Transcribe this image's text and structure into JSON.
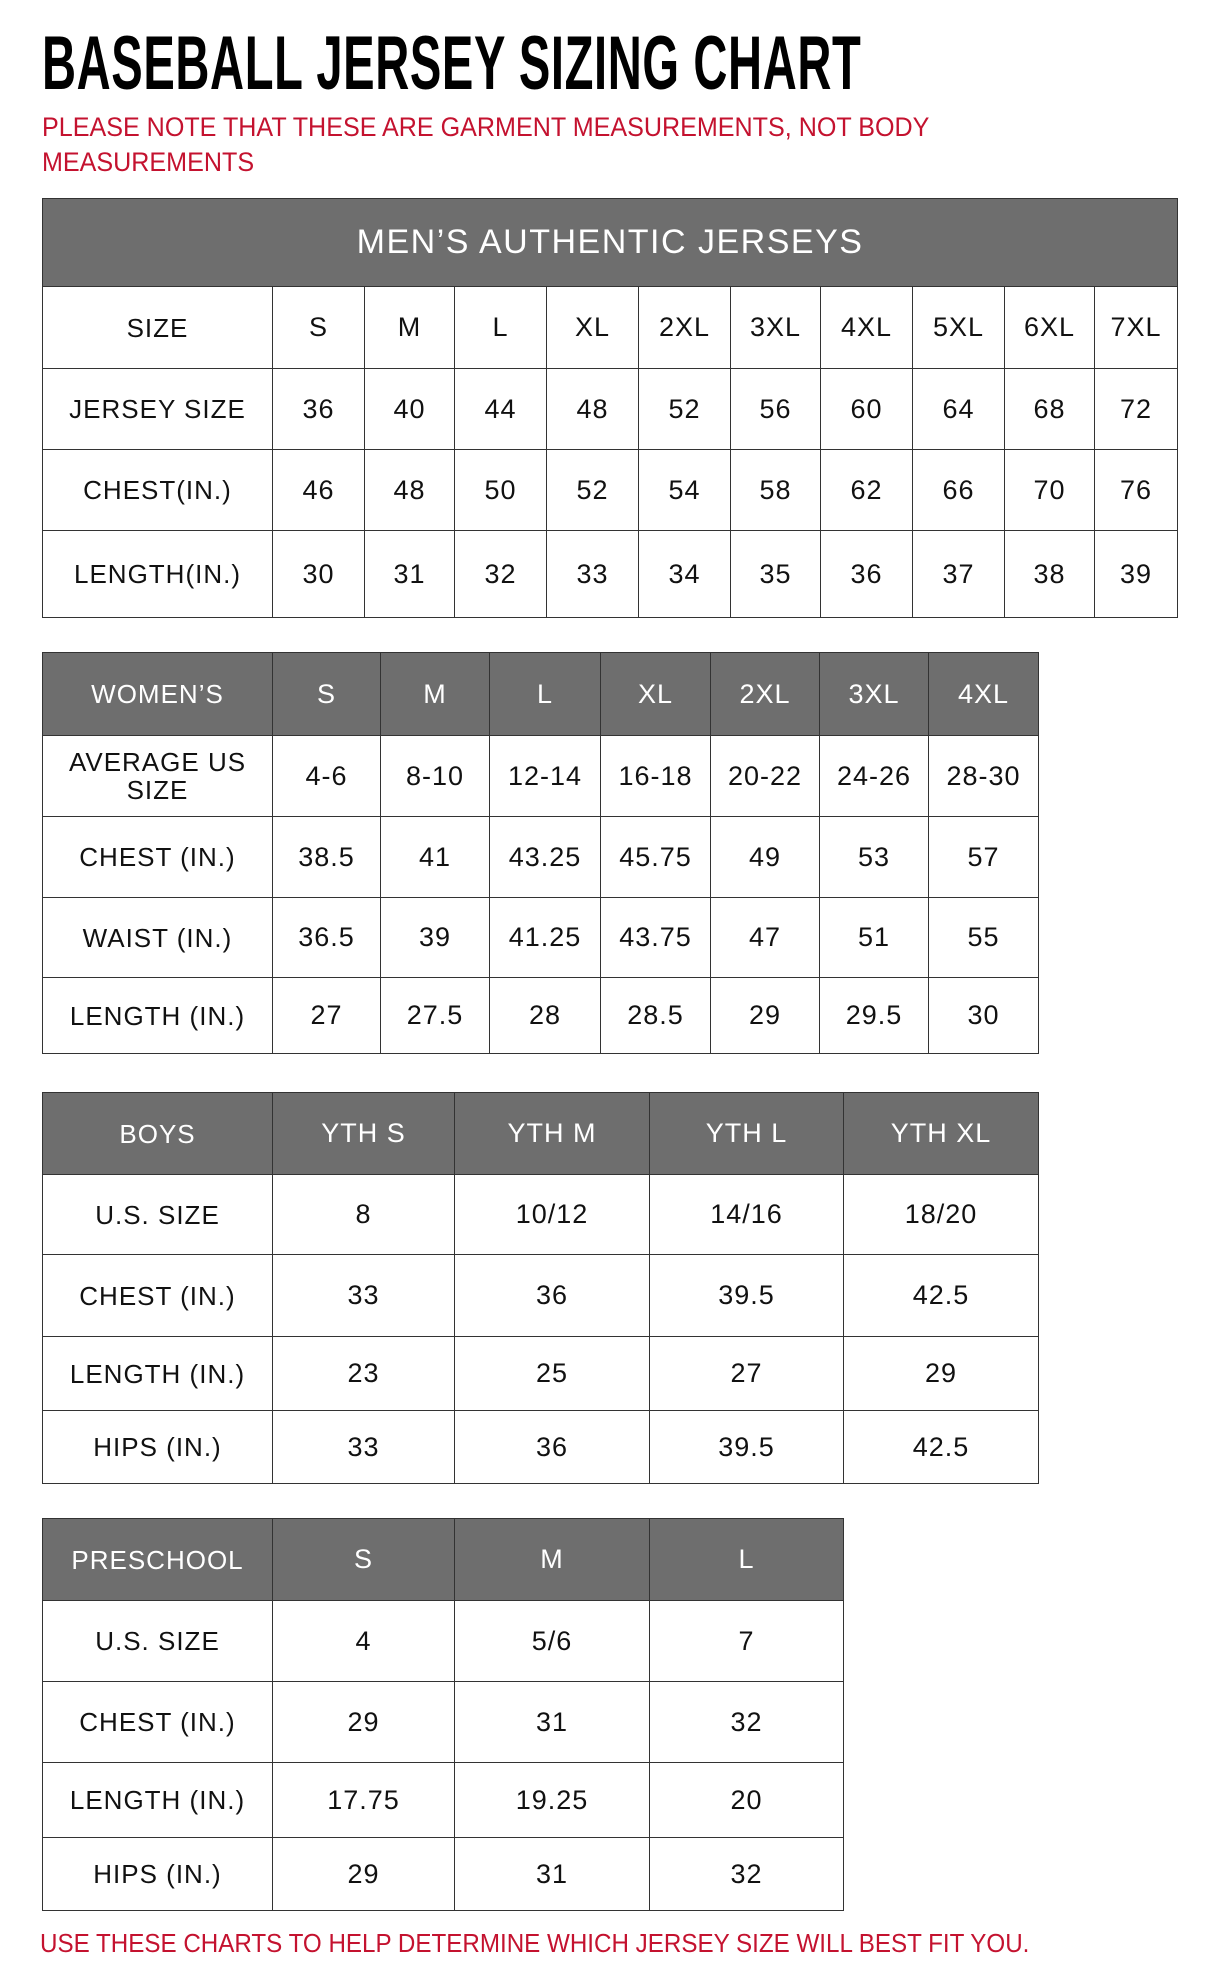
{
  "title": "BASEBALL JERSEY SIZING CHART",
  "note": "PLEASE NOTE THAT THESE ARE GARMENT MEASUREMENTS, NOT BODY MEASUREMENTS",
  "footer": "USE THESE CHARTS TO HELP DETERMINE WHICH JERSEY SIZE WILL BEST FIT YOU.",
  "colors": {
    "header_bg": "#6e6e6e",
    "accent_red": "#c4122f"
  },
  "tables": [
    {
      "id": "mens",
      "banner": "MEN’S AUTHENTIC JERSEYS",
      "header": [
        "SIZE",
        "S",
        "M",
        "L",
        "XL",
        "2XL",
        "3XL",
        "4XL",
        "5XL",
        "6XL",
        "7XL"
      ],
      "rows": [
        [
          "JERSEY SIZE",
          "36",
          "40",
          "44",
          "48",
          "52",
          "56",
          "60",
          "64",
          "68",
          "72"
        ],
        [
          "CHEST(IN.)",
          "46",
          "48",
          "50",
          "52",
          "54",
          "58",
          "62",
          "66",
          "70",
          "76"
        ],
        [
          "LENGTH(IN.)",
          "30",
          "31",
          "32",
          "33",
          "34",
          "35",
          "36",
          "37",
          "38",
          "39"
        ]
      ]
    },
    {
      "id": "womens",
      "header": [
        "WOMEN’S",
        "S",
        "M",
        "L",
        "XL",
        "2XL",
        "3XL",
        "4XL"
      ],
      "rows": [
        [
          "AVERAGE US SIZE",
          "4-6",
          "8-10",
          "12-14",
          "16-18",
          "20-22",
          "24-26",
          "28-30"
        ],
        [
          "CHEST (IN.)",
          "38.5",
          "41",
          "43.25",
          "45.75",
          "49",
          "53",
          "57"
        ],
        [
          "WAIST (IN.)",
          "36.5",
          "39",
          "41.25",
          "43.75",
          "47",
          "51",
          "55"
        ],
        [
          "LENGTH (IN.)",
          "27",
          "27.5",
          "28",
          "28.5",
          "29",
          "29.5",
          "30"
        ]
      ]
    },
    {
      "id": "boys",
      "header": [
        "BOYS",
        "YTH S",
        "YTH M",
        "YTH L",
        "YTH XL"
      ],
      "rows": [
        [
          "U.S. SIZE",
          "8",
          "10/12",
          "14/16",
          "18/20"
        ],
        [
          "CHEST (IN.)",
          "33",
          "36",
          "39.5",
          "42.5"
        ],
        [
          "LENGTH (IN.)",
          "23",
          "25",
          "27",
          "29"
        ],
        [
          "HIPS (IN.)",
          "33",
          "36",
          "39.5",
          "42.5"
        ]
      ]
    },
    {
      "id": "preschool",
      "header": [
        "PRESCHOOL",
        "S",
        "M",
        "L"
      ],
      "rows": [
        [
          "U.S. SIZE",
          "4",
          "5/6",
          "7"
        ],
        [
          "CHEST (IN.)",
          "29",
          "31",
          "32"
        ],
        [
          "LENGTH (IN.)",
          "17.75",
          "19.25",
          "20"
        ],
        [
          "HIPS (IN.)",
          "29",
          "31",
          "32"
        ]
      ]
    }
  ]
}
